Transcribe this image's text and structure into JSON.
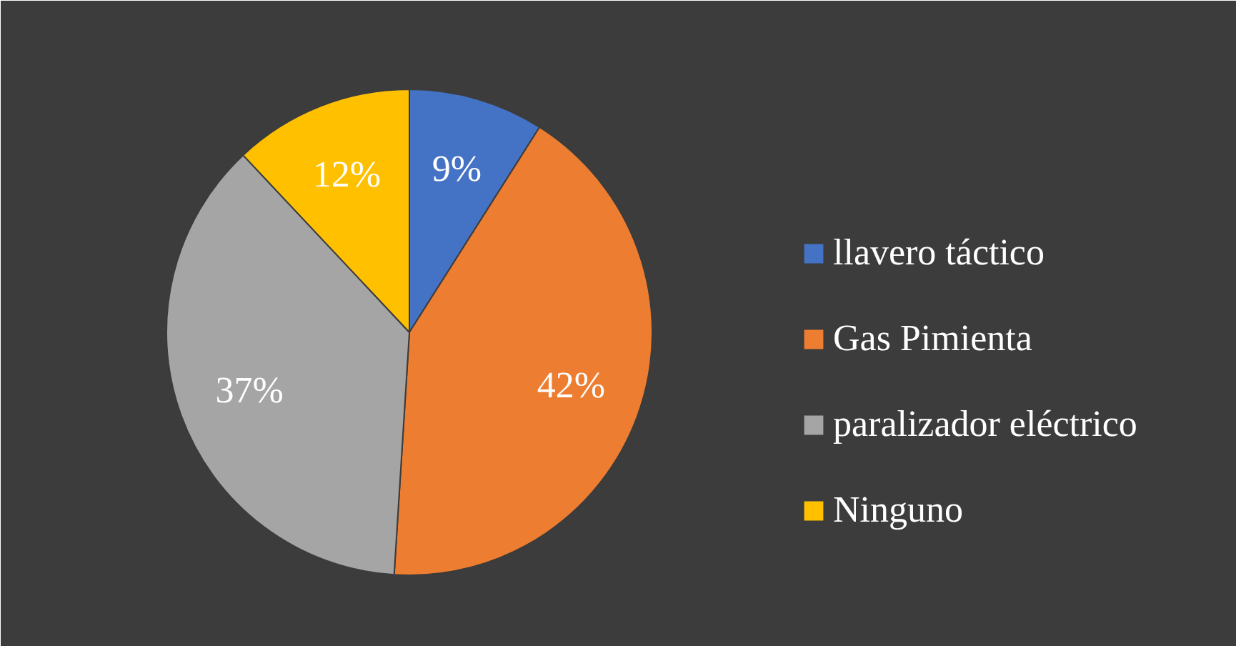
{
  "chart_data": {
    "type": "pie",
    "categories": [
      "llavero táctico",
      "Gas Pimienta",
      "paralizador eléctrico",
      "Ninguno"
    ],
    "values": [
      9,
      42,
      37,
      12
    ],
    "colors": [
      "#4472c4",
      "#ed7d31",
      "#a5a5a5",
      "#ffc000"
    ],
    "value_labels": [
      "9%",
      "42%",
      "37%",
      "12%"
    ],
    "legend": "right"
  }
}
